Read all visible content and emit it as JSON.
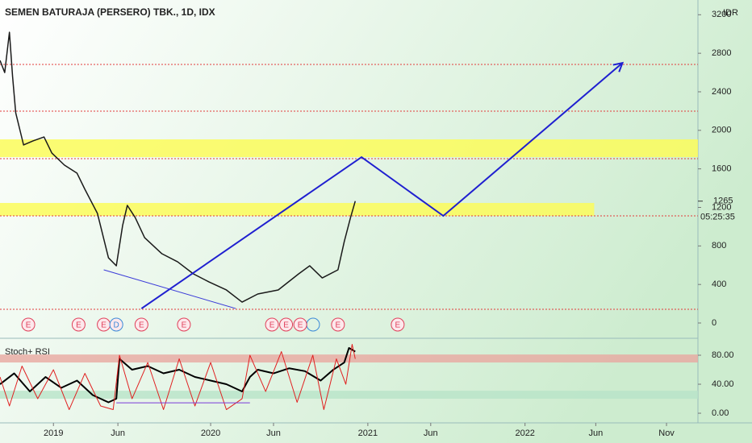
{
  "chart_data": [
    {
      "type": "line",
      "title": "SEMEN BATURAJA (PERSERO) TBK., 1D, IDX",
      "currency": "IDR",
      "xlim": [
        2018.66,
        2023.1
      ],
      "ylim": [
        -117,
        3353
      ],
      "yticks": [
        0,
        400,
        800,
        1200,
        1600,
        2000,
        2400,
        2800,
        3200
      ],
      "xticks": [
        {
          "value": 2019.0,
          "label": "2019"
        },
        {
          "value": 2019.41,
          "label": "Jun"
        },
        {
          "value": 2020.0,
          "label": "2020"
        },
        {
          "value": 2020.4,
          "label": "Jun"
        },
        {
          "value": 2021.0,
          "label": "2021"
        },
        {
          "value": 2021.4,
          "label": "Jun"
        },
        {
          "value": 2022.0,
          "label": "2022"
        },
        {
          "value": 2022.45,
          "label": "Jun"
        },
        {
          "value": 2022.9,
          "label": "Nov"
        }
      ],
      "x": [
        2018.66,
        2018.69,
        2018.72,
        2018.74,
        2018.76,
        2018.81,
        2018.87,
        2018.94,
        2018.99,
        2019.07,
        2019.15,
        2019.2,
        2019.28,
        2019.35,
        2019.4,
        2019.44,
        2019.47,
        2019.52,
        2019.58,
        2019.69,
        2019.79,
        2019.89,
        2019.99,
        2020.1,
        2020.2,
        2020.3,
        2020.43,
        2020.56,
        2020.63,
        2020.71,
        2020.81,
        2020.85,
        2020.89,
        2020.92
      ],
      "series": [
        {
          "color": "#1a1a1a",
          "values": [
            2726,
            2600,
            3018,
            2559,
            2182,
            1848,
            1890,
            1931,
            1764,
            1639,
            1555,
            1388,
            1137,
            677,
            594,
            1012,
            1221,
            1095,
            886,
            719,
            635,
            510,
            426,
            343,
            217,
            301,
            343,
            510,
            594,
            468,
            552,
            845,
            1095,
            1265
          ]
        }
      ],
      "last_price": 1265,
      "countdown": "05:25:35",
      "zones": [
        {
          "from": 1722,
          "to": 1906,
          "color": "#fbfb5a"
        },
        {
          "from": 1112,
          "to": 1246,
          "color": "#fbfb5a",
          "x_end": 2022.44
        }
      ],
      "levels": [
        2684,
        2199,
        1706,
        1112,
        142
      ],
      "level_color": "#e23a3a",
      "drawings": [
        {
          "color": "#1f1fd0",
          "arrow": true,
          "x": [
            2019.56,
            2020.96,
            2021.48,
            2022.62
          ],
          "y": [
            150,
            1722,
            1112,
            2700
          ]
        },
        {
          "color": "#3a3ad8",
          "arrow": false,
          "x": [
            2019.32,
            2020.16
          ],
          "y": [
            552,
            150
          ]
        }
      ],
      "events": [
        {
          "x": 2018.84,
          "label": "E"
        },
        {
          "x": 2019.16,
          "label": "E"
        },
        {
          "x": 2019.32,
          "label": "E"
        },
        {
          "x": 2019.4,
          "label": "D"
        },
        {
          "x": 2019.56,
          "label": "E"
        },
        {
          "x": 2019.83,
          "label": "E"
        },
        {
          "x": 2020.39,
          "label": "E"
        },
        {
          "x": 2020.48,
          "label": "E"
        },
        {
          "x": 2020.57,
          "label": "E"
        },
        {
          "x": 2020.81,
          "label": "E"
        },
        {
          "x": 2021.19,
          "label": "E"
        }
      ]
    },
    {
      "type": "line",
      "title": "Stoch+ RSI",
      "xlim": [
        2018.66,
        2023.1
      ],
      "ylim": [
        -13.3,
        97.8
      ],
      "yticks": [
        {
          "value": 80,
          "label": "80.00"
        },
        {
          "value": 40,
          "label": "40.00"
        },
        {
          "value": 0,
          "label": "0.00"
        }
      ],
      "bands": [
        {
          "from": 70,
          "to": 81,
          "color": "#e8a8a0"
        },
        {
          "from": 20,
          "to": 31,
          "color": "#b8e4c8"
        }
      ],
      "drawings": [
        {
          "color": "#7a3ad8",
          "x": [
            2019.4,
            2020.25
          ],
          "y": [
            14.4,
            14.4
          ]
        }
      ],
      "series": [
        {
          "color": "#000000",
          "x": [
            2018.66,
            2018.75,
            2018.85,
            2018.95,
            2019.05,
            2019.15,
            2019.25,
            2019.35,
            2019.4,
            2019.42,
            2019.5,
            2019.6,
            2019.7,
            2019.8,
            2019.9,
            2020.0,
            2020.1,
            2020.2,
            2020.25,
            2020.3,
            2020.4,
            2020.5,
            2020.6,
            2020.7,
            2020.78,
            2020.85,
            2020.88,
            2020.92
          ],
          "values": [
            40,
            55,
            30,
            50,
            35,
            45,
            25,
            15,
            20,
            75,
            60,
            65,
            55,
            60,
            50,
            45,
            40,
            30,
            50,
            60,
            55,
            62,
            58,
            45,
            60,
            70,
            90,
            85
          ]
        },
        {
          "color": "#e02020",
          "x": [
            2018.66,
            2018.72,
            2018.8,
            2018.9,
            2019.0,
            2019.1,
            2019.2,
            2019.3,
            2019.38,
            2019.42,
            2019.5,
            2019.6,
            2019.7,
            2019.8,
            2019.9,
            2020.0,
            2020.1,
            2020.2,
            2020.25,
            2020.35,
            2020.45,
            2020.55,
            2020.65,
            2020.72,
            2020.8,
            2020.86,
            2020.9,
            2020.92
          ],
          "values": [
            50,
            10,
            65,
            20,
            60,
            5,
            55,
            10,
            5,
            80,
            20,
            70,
            5,
            75,
            10,
            70,
            5,
            20,
            80,
            30,
            85,
            15,
            80,
            5,
            75,
            40,
            95,
            75
          ]
        }
      ]
    }
  ]
}
